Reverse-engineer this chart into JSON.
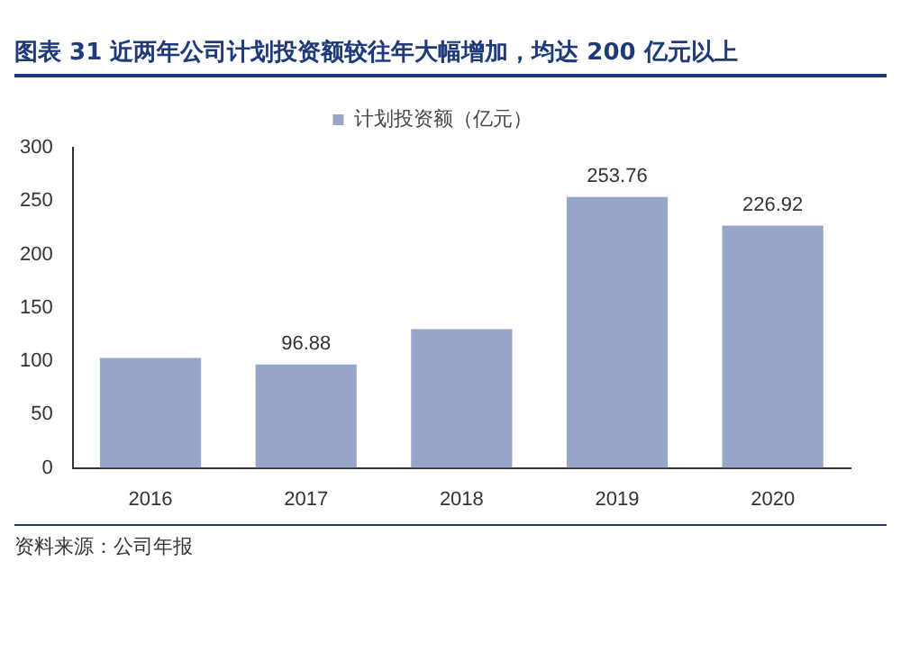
{
  "chart_data": {
    "type": "bar",
    "title": "图表 31   近两年公司计划投资额较往年大幅增加，均达 200 亿元以上",
    "categories": [
      "2016",
      "2017",
      "2018",
      "2019",
      "2020"
    ],
    "series": [
      {
        "name": "计划投资额（亿元）",
        "color": "#97a5c8",
        "values": [
          103,
          96.88,
          130,
          253.76,
          226.92
        ],
        "value_labels": [
          null,
          "96.88",
          null,
          "253.76",
          "226.92"
        ]
      }
    ],
    "ylim": [
      0,
      300
    ],
    "yticks": [
      0,
      50,
      100,
      150,
      200,
      250,
      300
    ],
    "grid": false,
    "legend": "top",
    "annotations": [
      "资料来源：公司年报"
    ]
  }
}
